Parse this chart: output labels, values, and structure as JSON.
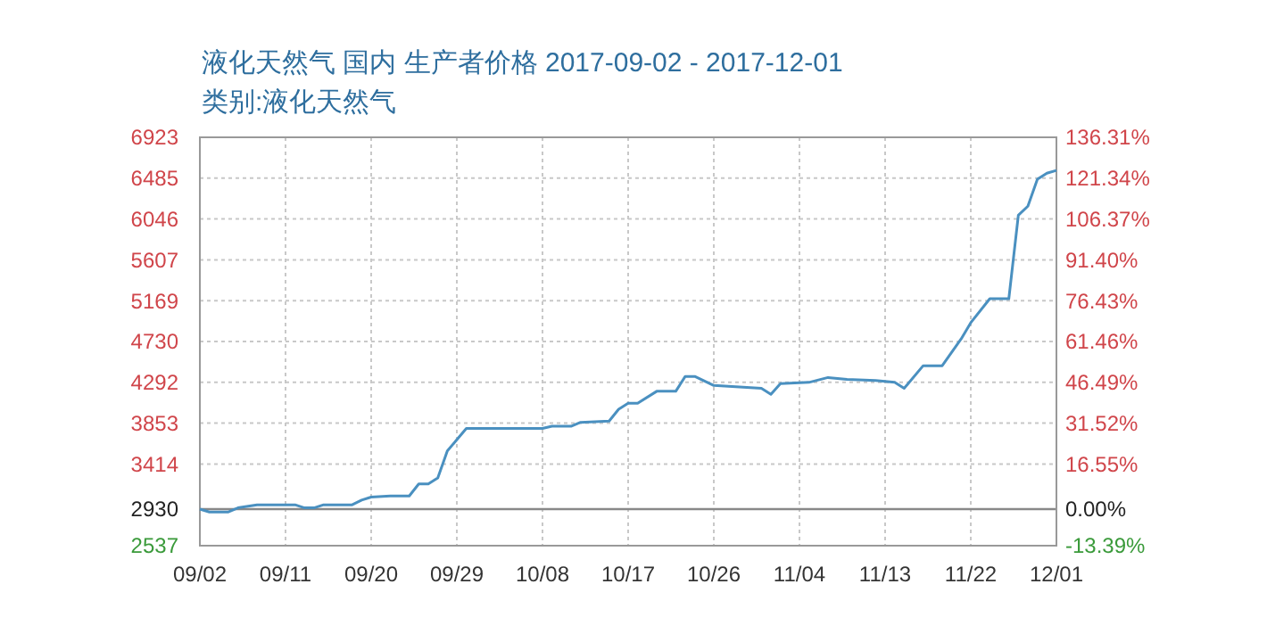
{
  "chart_data": {
    "type": "line",
    "title": "液化天然气 国内 生产者价格 2017-09-02 - 2017-12-01",
    "subtitle": "类别:液化天然气",
    "x": [
      "2017-09-02",
      "2017-09-03",
      "2017-09-05",
      "2017-09-06",
      "2017-09-08",
      "2017-09-12",
      "2017-09-13",
      "2017-09-14",
      "2017-09-15",
      "2017-09-18",
      "2017-09-19",
      "2017-09-20",
      "2017-09-22",
      "2017-09-24",
      "2017-09-25",
      "2017-09-26",
      "2017-09-27",
      "2017-09-28",
      "2017-09-30",
      "2017-10-08",
      "2017-10-09",
      "2017-10-11",
      "2017-10-12",
      "2017-10-15",
      "2017-10-16",
      "2017-10-17",
      "2017-10-18",
      "2017-10-20",
      "2017-10-22",
      "2017-10-23",
      "2017-10-24",
      "2017-10-26",
      "2017-10-31",
      "2017-11-01",
      "2017-11-02",
      "2017-11-05",
      "2017-11-07",
      "2017-11-09",
      "2017-11-12",
      "2017-11-14",
      "2017-11-15",
      "2017-11-17",
      "2017-11-19",
      "2017-11-21",
      "2017-11-22",
      "2017-11-24",
      "2017-11-26",
      "2017-11-27",
      "2017-11-28",
      "2017-11-29",
      "2017-11-30",
      "2017-12-01"
    ],
    "series": [
      {
        "color": "#4a90c0",
        "values": [
          2930,
          2899,
          2899,
          2943,
          2976,
          2976,
          2943,
          2943,
          2976,
          2976,
          3026,
          3059,
          3071,
          3071,
          3200,
          3200,
          3265,
          3554,
          3796,
          3796,
          3820,
          3820,
          3862,
          3875,
          4002,
          4066,
          4066,
          4195,
          4195,
          4355,
          4355,
          4258,
          4227,
          4162,
          4278,
          4291,
          4343,
          4323,
          4310,
          4291,
          4227,
          4470,
          4470,
          4759,
          4932,
          5190,
          5190,
          6087,
          6183,
          6472,
          6537,
          6568
        ]
      }
    ],
    "xlim": [
      "2017-09-02",
      "2017-12-01"
    ],
    "xticks": [
      {
        "value": "2017-09-02",
        "label": "09/02"
      },
      {
        "value": "2017-09-11",
        "label": "09/11"
      },
      {
        "value": "2017-09-20",
        "label": "09/20"
      },
      {
        "value": "2017-09-29",
        "label": "09/29"
      },
      {
        "value": "2017-10-08",
        "label": "10/08"
      },
      {
        "value": "2017-10-17",
        "label": "10/17"
      },
      {
        "value": "2017-10-26",
        "label": "10/26"
      },
      {
        "value": "2017-11-04",
        "label": "11/04"
      },
      {
        "value": "2017-11-13",
        "label": "11/13"
      },
      {
        "value": "2017-11-22",
        "label": "11/22"
      },
      {
        "value": "2017-12-01",
        "label": "12/01"
      }
    ],
    "ylim": [
      2537,
      6923
    ],
    "yticks": [
      2537,
      2930,
      3414,
      3853,
      4292,
      4730,
      5169,
      5607,
      6046,
      6485,
      6923
    ],
    "y2lim": [
      -13.39,
      136.31
    ],
    "y2ticks": [
      {
        "value": -13.39,
        "label": "-13.39%"
      },
      {
        "value": 0,
        "label": "0.00%"
      },
      {
        "value": 16.55,
        "label": "16.55%"
      },
      {
        "value": 31.52,
        "label": "31.52%"
      },
      {
        "value": 46.49,
        "label": "46.49%"
      },
      {
        "value": 61.46,
        "label": "61.46%"
      },
      {
        "value": 76.43,
        "label": "76.43%"
      },
      {
        "value": 91.4,
        "label": "91.40%"
      },
      {
        "value": 106.37,
        "label": "106.37%"
      },
      {
        "value": 121.34,
        "label": "121.34%"
      },
      {
        "value": 136.31,
        "label": "136.31%"
      }
    ],
    "ref_lines": [
      {
        "axis": "y2",
        "value": 0,
        "color": "#888888"
      }
    ],
    "grid": true,
    "marker": "none",
    "line_style": "solid"
  }
}
